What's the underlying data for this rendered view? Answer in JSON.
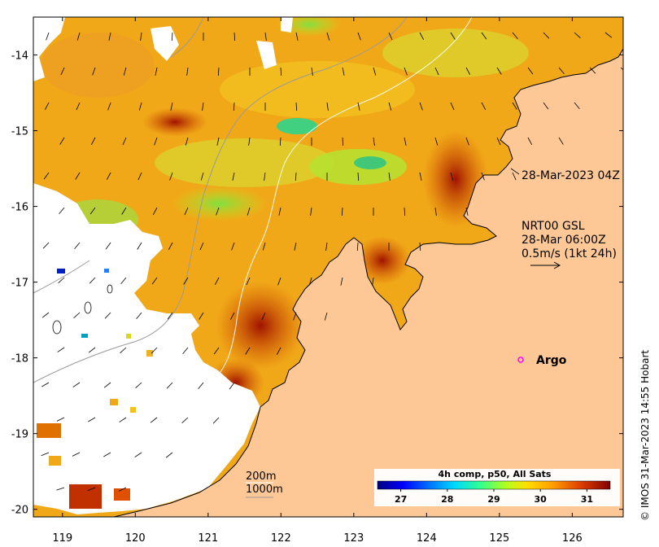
{
  "map": {
    "y_ticks": [
      -14,
      -15,
      -16,
      -17,
      -18,
      -19,
      -20
    ],
    "x_ticks": [
      119,
      120,
      121,
      122,
      123,
      124,
      125,
      126
    ],
    "lon_range": [
      118.6,
      126.7
    ],
    "lat_range": [
      -20.1,
      -13.5
    ]
  },
  "annotations": {
    "date_label": "28-Mar-2023 04Z",
    "current_source": "NRT00 GSL",
    "current_time": "28-Mar 06:00Z",
    "current_scale": "0.5m/s (1kt 24h)",
    "argo_label": "Argo",
    "depth_200": "200m",
    "depth_1000": "1000m"
  },
  "colorbar": {
    "title": "4h comp, p50, All Sats",
    "ticks": [
      "27",
      "28",
      "29",
      "30",
      "31"
    ],
    "range": [
      26.5,
      31.5
    ]
  },
  "credit": "© IMOS 31-Mar-2023 14:55 Hobart",
  "colors": {
    "land": "#fdc896",
    "no_data": "#ffffff",
    "argo_marker": "#ff00ff"
  }
}
